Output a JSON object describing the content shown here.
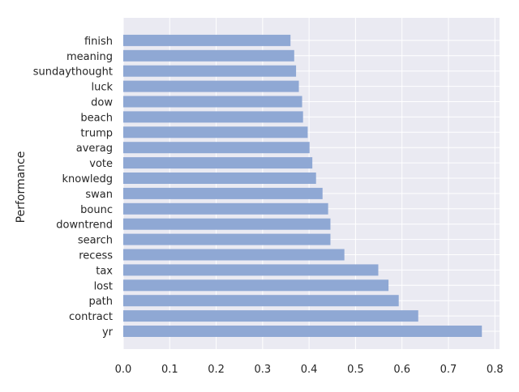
{
  "chart_data": {
    "type": "bar",
    "orientation": "horizontal",
    "title": "",
    "xlabel": "",
    "ylabel": "Performance",
    "xlim": [
      0.0,
      0.81
    ],
    "xticks": [
      "0.0",
      "0.1",
      "0.2",
      "0.3",
      "0.4",
      "0.5",
      "0.6",
      "0.7",
      "0.8"
    ],
    "grid": true,
    "legend": "none",
    "categories": [
      "yr",
      "contract",
      "path",
      "lost",
      "tax",
      "recess",
      "search",
      "downtrend",
      "bounc",
      "swan",
      "knowledg",
      "vote",
      "averag",
      "trump",
      "beach",
      "dow",
      "luck",
      "sundaythought",
      "meaning",
      "finish"
    ],
    "values": [
      0.772,
      0.635,
      0.593,
      0.571,
      0.549,
      0.476,
      0.446,
      0.446,
      0.441,
      0.429,
      0.415,
      0.407,
      0.401,
      0.397,
      0.387,
      0.385,
      0.378,
      0.372,
      0.368,
      0.36
    ],
    "colors": {
      "bar": "#8fa8d4",
      "plot_background": "#eaeaf2",
      "grid": "#ffffff",
      "text": "#262626"
    }
  }
}
